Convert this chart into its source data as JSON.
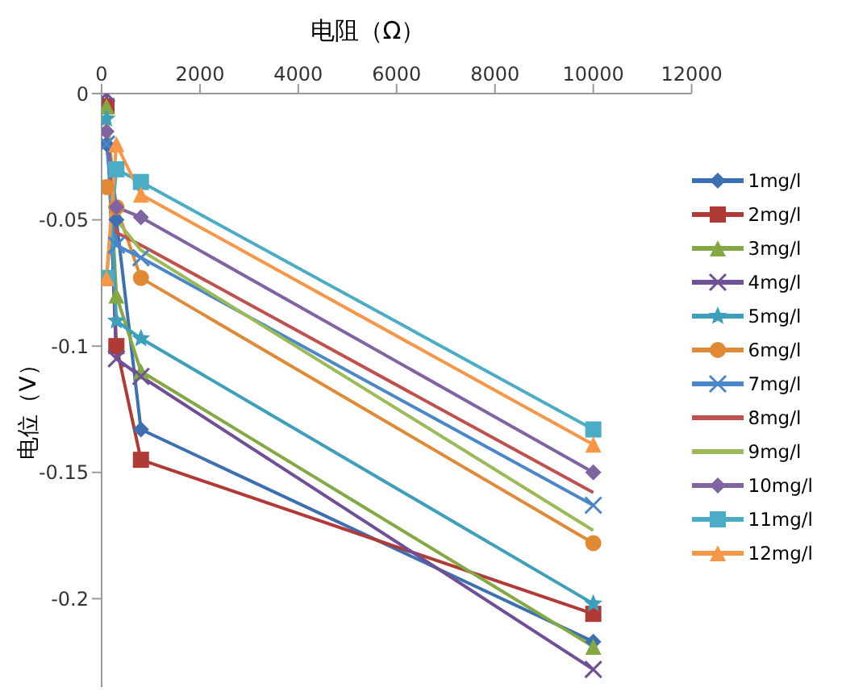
{
  "chart_data": {
    "type": "line",
    "xlabel": "电阻（Ω）",
    "ylabel": "电位（V）",
    "x": [
      100,
      300,
      800,
      10000
    ],
    "xlim": [
      0,
      12000
    ],
    "xticks": [
      0,
      2000,
      4000,
      6000,
      8000,
      10000,
      12000
    ],
    "ylim": [
      -0.235,
      0
    ],
    "yticks": [
      -0.2,
      -0.15,
      -0.1,
      -0.05,
      0
    ],
    "grid": false,
    "legend": "right",
    "series": [
      {
        "name": "1mg/l",
        "color": "#3e6fb0",
        "marker": "diamond",
        "values": [
          -0.02,
          -0.05,
          -0.133,
          -0.217
        ]
      },
      {
        "name": "2mg/l",
        "color": "#b03a36",
        "marker": "square",
        "values": [
          -0.005,
          -0.1,
          -0.145,
          -0.206
        ]
      },
      {
        "name": "3mg/l",
        "color": "#84a844",
        "marker": "triangle",
        "values": [
          -0.005,
          -0.08,
          -0.11,
          -0.219
        ]
      },
      {
        "name": "4mg/l",
        "color": "#6f4f96",
        "marker": "cross",
        "values": [
          0,
          -0.105,
          -0.112,
          -0.228
        ]
      },
      {
        "name": "5mg/l",
        "color": "#3d9fba",
        "marker": "star",
        "values": [
          -0.01,
          -0.09,
          -0.097,
          -0.202
        ]
      },
      {
        "name": "6mg/l",
        "color": "#e08a36",
        "marker": "circle",
        "values": [
          -0.037,
          -0.045,
          -0.073,
          -0.178
        ]
      },
      {
        "name": "7mg/l",
        "color": "#4a86c8",
        "marker": "cross",
        "values": [
          -0.02,
          -0.06,
          -0.065,
          -0.163
        ]
      },
      {
        "name": "8mg/l",
        "color": "#c0504d",
        "marker": "none",
        "values": [
          -0.01,
          -0.055,
          -0.06,
          -0.158
        ]
      },
      {
        "name": "9mg/l",
        "color": "#9bbb59",
        "marker": "none",
        "values": [
          -0.005,
          -0.05,
          -0.062,
          -0.173
        ]
      },
      {
        "name": "10mg/l",
        "color": "#8064a2",
        "marker": "diamond",
        "values": [
          -0.015,
          -0.045,
          -0.049,
          -0.15
        ]
      },
      {
        "name": "11mg/l",
        "color": "#4bacc6",
        "marker": "square",
        "values": [
          -0.073,
          -0.03,
          -0.035,
          -0.133
        ]
      },
      {
        "name": "12mg/l",
        "color": "#f79646",
        "marker": "triangle",
        "values": [
          -0.073,
          -0.02,
          -0.04,
          -0.139
        ]
      }
    ]
  }
}
